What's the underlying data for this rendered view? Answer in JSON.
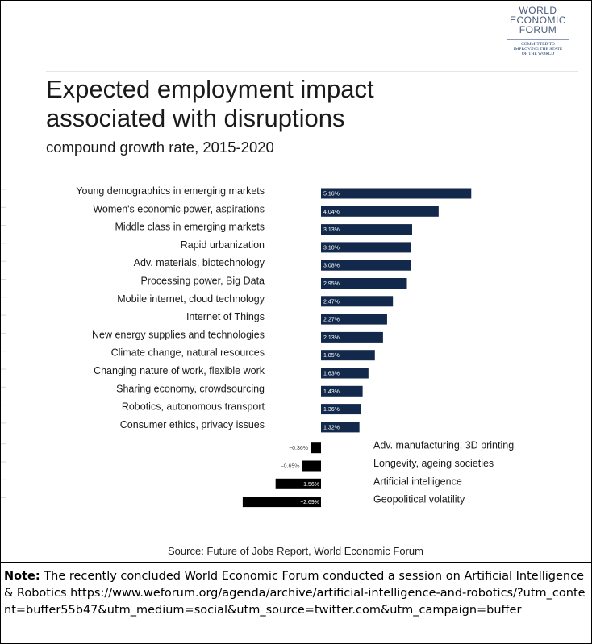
{
  "logo": {
    "line1": "WORLD",
    "line2": "ECONOMIC",
    "line3": "FORUM",
    "tag1": "COMMITTED TO",
    "tag2": "IMPROVING THE STATE",
    "tag3": "OF THE WORLD"
  },
  "colors": {
    "positive": "#13294b",
    "negative": "#000000"
  },
  "chart_data": {
    "type": "bar",
    "orientation": "horizontal",
    "title": "Expected employment impact associated with disruptions",
    "subtitle": "compound growth rate, 2015-2020",
    "value_format": "percent",
    "categories": [
      "Young demographics in emerging markets",
      "Women's economic power, aspirations",
      "Middle class in emerging markets",
      "Rapid urbanization",
      "Adv. materials, biotechnology",
      "Processing power, Big Data",
      "Mobile internet, cloud technology",
      "Internet of Things",
      "New energy supplies and technologies",
      "Climate change, natural resources",
      "Changing nature of work, flexible work",
      "Sharing economy, crowdsourcing",
      "Robotics, autonomous transport",
      "Consumer ethics, privacy issues",
      "Adv. manufacturing, 3D printing",
      "Longevity, ageing societies",
      "Artificial intelligence",
      "Geopolitical volatility"
    ],
    "values": [
      5.16,
      4.04,
      3.13,
      3.1,
      3.08,
      2.95,
      2.47,
      2.27,
      2.13,
      1.85,
      1.63,
      1.43,
      1.36,
      1.32,
      -0.36,
      -0.65,
      -1.56,
      -2.69
    ],
    "data_labels": [
      "5.16%",
      "4.04%",
      "3.13%",
      "3.10%",
      "3.08%",
      "2.95%",
      "2.47%",
      "2.27%",
      "2.13%",
      "1.85%",
      "1.63%",
      "1.43%",
      "1.36%",
      "1.32%",
      "−0.36%",
      "−0.65%",
      "−1.56%",
      "−2.69%"
    ],
    "source": "Source: Future of Jobs Report, World Economic Forum"
  },
  "note": {
    "label": "Note:",
    "text": " The recently concluded World Economic Forum conducted a session on Artificial Intelligence & Robotics https://www.weforum.org/agenda/archive/artificial-intelligence-and-robotics/?utm_content=buffer55b47&utm_medium=social&utm_source=twitter.com&utm_campaign=buffer"
  }
}
